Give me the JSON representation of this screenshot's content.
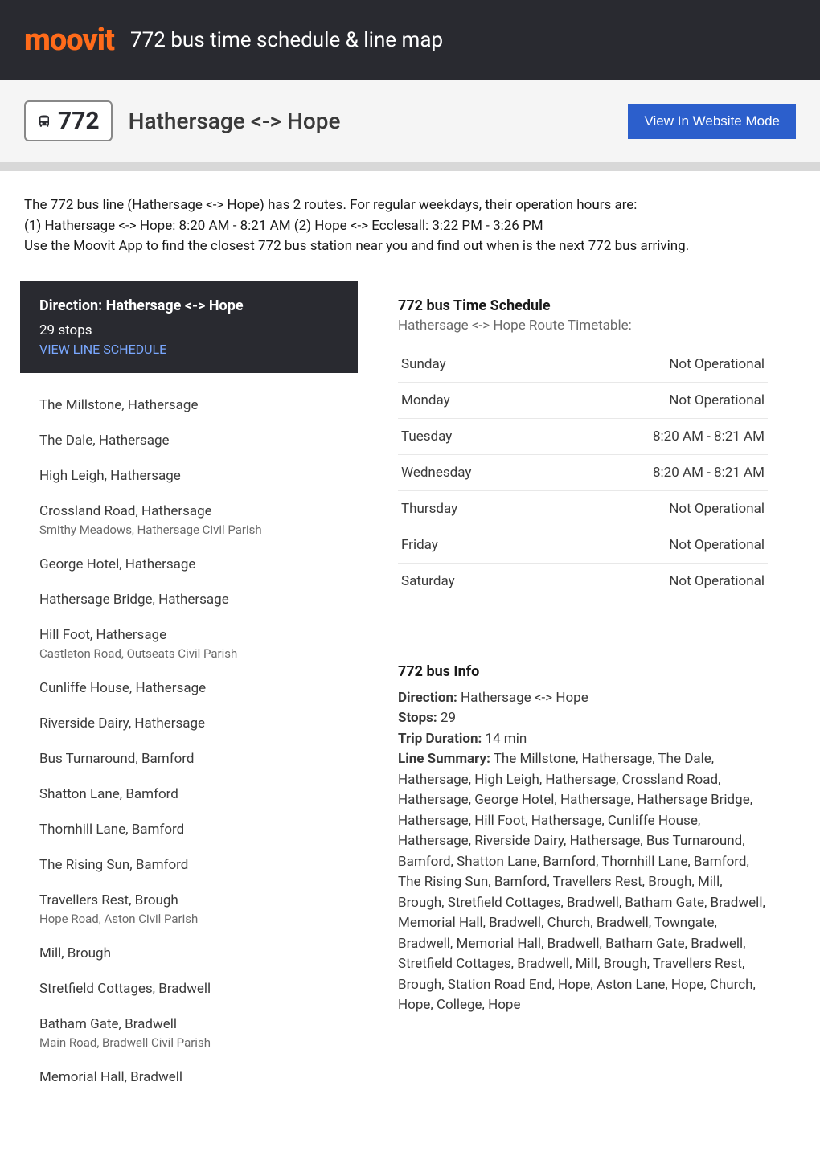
{
  "header": {
    "logo_text": "moovit",
    "title": "772 bus time schedule & line map"
  },
  "route_bar": {
    "route_number": "772",
    "route_name": "Hathersage <-> Hope",
    "website_mode_label": "View In Website Mode"
  },
  "intro": {
    "line1": "The 772 bus line (Hathersage <-> Hope) has 2 routes. For regular weekdays, their operation hours are:",
    "line2": "(1) Hathersage <-> Hope: 8:20 AM - 8:21 AM (2) Hope <-> Ecclesall: 3:22 PM - 3:26 PM",
    "line3": "Use the Moovit App to find the closest 772 bus station near you and find out when is the next 772 bus arriving."
  },
  "direction": {
    "title": "Direction: Hathersage <-> Hope",
    "stops_count": "29 stops",
    "schedule_link": "VIEW LINE SCHEDULE"
  },
  "stops": [
    {
      "name": "The Millstone, Hathersage",
      "detail": ""
    },
    {
      "name": "The Dale, Hathersage",
      "detail": ""
    },
    {
      "name": "High Leigh, Hathersage",
      "detail": ""
    },
    {
      "name": "Crossland Road, Hathersage",
      "detail": "Smithy Meadows, Hathersage Civil Parish"
    },
    {
      "name": "George Hotel, Hathersage",
      "detail": ""
    },
    {
      "name": "Hathersage Bridge, Hathersage",
      "detail": ""
    },
    {
      "name": "Hill Foot, Hathersage",
      "detail": "Castleton Road, Outseats Civil Parish"
    },
    {
      "name": "Cunliffe House, Hathersage",
      "detail": ""
    },
    {
      "name": "Riverside Dairy, Hathersage",
      "detail": ""
    },
    {
      "name": "Bus Turnaround, Bamford",
      "detail": ""
    },
    {
      "name": "Shatton Lane, Bamford",
      "detail": ""
    },
    {
      "name": "Thornhill Lane, Bamford",
      "detail": ""
    },
    {
      "name": "The Rising Sun, Bamford",
      "detail": ""
    },
    {
      "name": "Travellers Rest, Brough",
      "detail": "Hope Road, Aston Civil Parish"
    },
    {
      "name": "Mill, Brough",
      "detail": ""
    },
    {
      "name": "Stretfield Cottages, Bradwell",
      "detail": ""
    },
    {
      "name": "Batham Gate, Bradwell",
      "detail": "Main Road, Bradwell Civil Parish"
    },
    {
      "name": "Memorial Hall, Bradwell",
      "detail": ""
    }
  ],
  "schedule": {
    "title": "772 bus Time Schedule",
    "subtitle": "Hathersage <-> Hope Route Timetable:",
    "rows": [
      {
        "day": "Sunday",
        "time": "Not Operational"
      },
      {
        "day": "Monday",
        "time": "Not Operational"
      },
      {
        "day": "Tuesday",
        "time": "8:20 AM - 8:21 AM"
      },
      {
        "day": "Wednesday",
        "time": "8:20 AM - 8:21 AM"
      },
      {
        "day": "Thursday",
        "time": "Not Operational"
      },
      {
        "day": "Friday",
        "time": "Not Operational"
      },
      {
        "day": "Saturday",
        "time": "Not Operational"
      }
    ]
  },
  "info": {
    "title": "772 bus Info",
    "direction_label": "Direction:",
    "direction_value": " Hathersage <-> Hope",
    "stops_label": "Stops:",
    "stops_value": " 29",
    "duration_label": "Trip Duration:",
    "duration_value": " 14 min",
    "summary_label": "Line Summary:",
    "summary_value": " The Millstone, Hathersage, The Dale, Hathersage, High Leigh, Hathersage, Crossland Road, Hathersage, George Hotel, Hathersage, Hathersage Bridge, Hathersage, Hill Foot, Hathersage, Cunliffe House, Hathersage, Riverside Dairy, Hathersage, Bus Turnaround, Bamford, Shatton Lane, Bamford, Thornhill Lane, Bamford, The Rising Sun, Bamford, Travellers Rest, Brough, Mill, Brough, Stretfield Cottages, Bradwell, Batham Gate, Bradwell, Memorial Hall, Bradwell, Church, Bradwell, Towngate, Bradwell, Memorial Hall, Bradwell, Batham Gate, Bradwell, Stretfield Cottages, Bradwell, Mill, Brough, Travellers Rest, Brough, Station Road End, Hope, Aston Lane, Hope, Church, Hope, College, Hope"
  },
  "colors": {
    "header_bg": "#292a30",
    "logo_color": "#ff6b1a",
    "button_bg": "#2c5fcc",
    "link_color": "#7aa8ff"
  }
}
